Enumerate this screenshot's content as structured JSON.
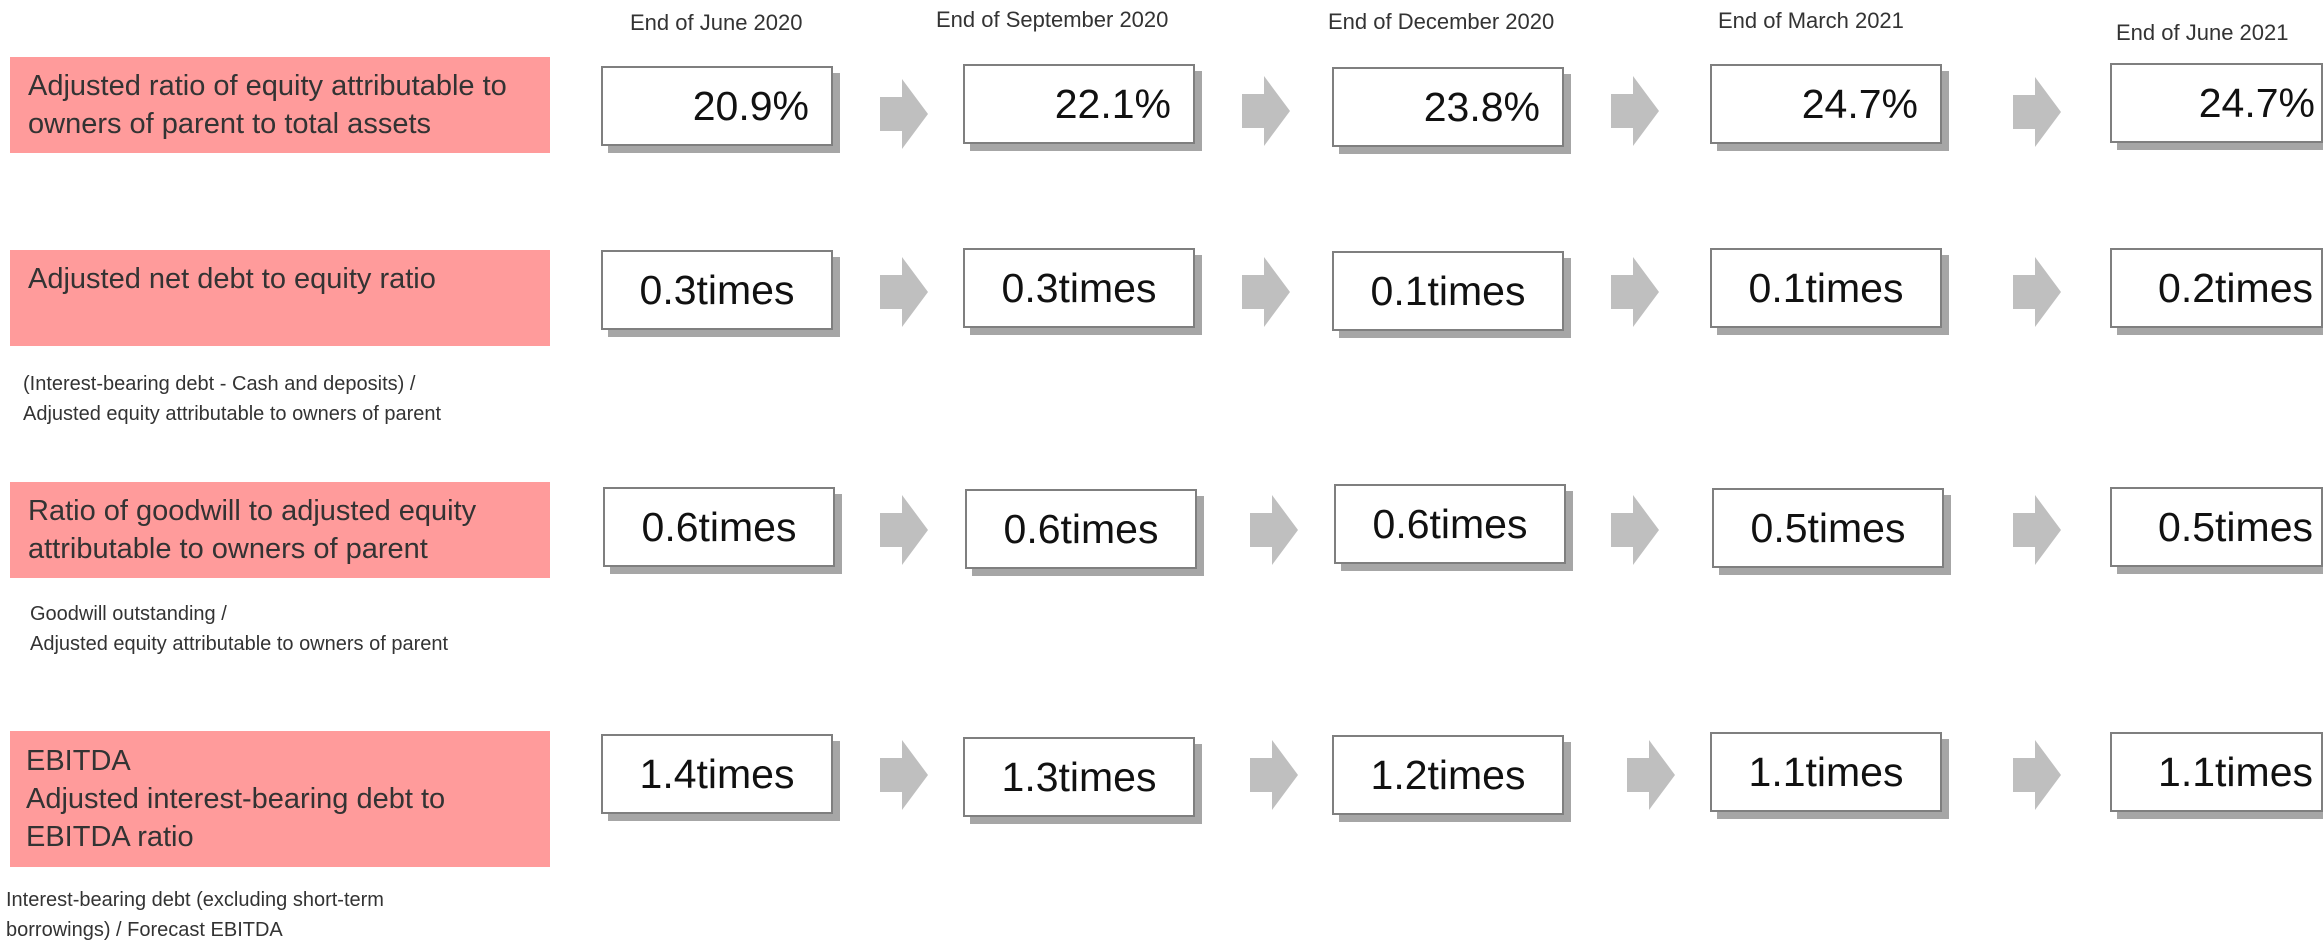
{
  "colors": {
    "metric_fill": "#ff9b9b",
    "arrow_fill": "#bfbfbf",
    "box_border": "#7f7f7f",
    "box_shadow": "#a6a6a6"
  },
  "periods": [
    "End of June 2020",
    "End of September 2020",
    "End of December 2020",
    "End of March 2021",
    "End of June 2021"
  ],
  "rows": [
    {
      "metric_lines": [
        "Adjusted ratio of equity attributable to",
        "owners of parent to total assets"
      ],
      "note_lines": [],
      "values": [
        "20.9%",
        "22.1%",
        "23.8%",
        "24.7%",
        "24.7%"
      ]
    },
    {
      "metric_lines": [
        "Adjusted net debt to equity ratio"
      ],
      "note_lines": [
        "(Interest-bearing debt - Cash and deposits) /",
        "Adjusted equity attributable to owners of parent"
      ],
      "values": [
        "0.3times",
        "0.3times",
        "0.1times",
        "0.1times",
        "0.2times"
      ]
    },
    {
      "metric_lines": [
        "Ratio of goodwill to adjusted equity",
        "attributable to owners of parent"
      ],
      "note_lines": [
        "Goodwill outstanding /",
        "Adjusted equity attributable to owners of parent"
      ],
      "values": [
        "0.6times",
        "0.6times",
        "0.6times",
        "0.5times",
        "0.5times"
      ]
    },
    {
      "metric_lines": [
        "EBITDA",
        "Adjusted interest-bearing debt to",
        "EBITDA ratio"
      ],
      "note_lines": [
        "Interest-bearing debt (excluding short-term",
        "borrowings) / Forecast EBITDA"
      ],
      "values": [
        "1.4times",
        "1.3times",
        "1.2times",
        "1.1times",
        "1.1times"
      ]
    }
  ]
}
